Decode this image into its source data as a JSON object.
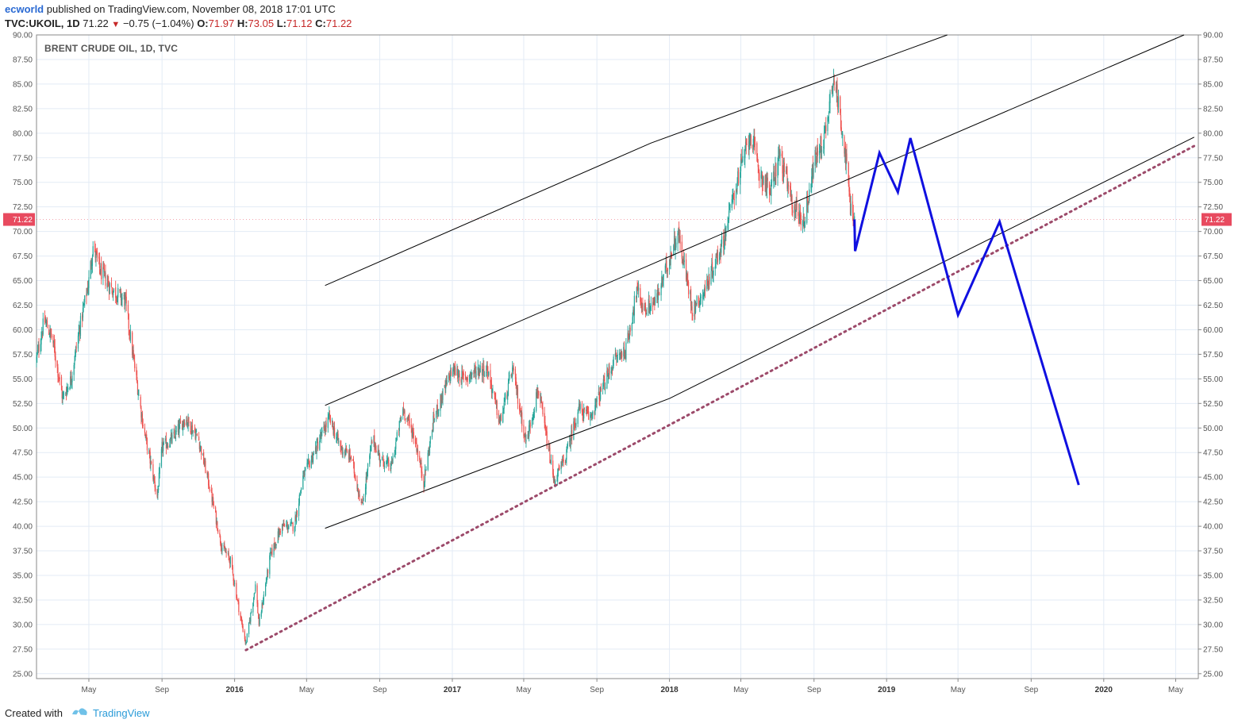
{
  "header": {
    "author": "ecworld",
    "published_text": "published on TradingView.com, November 08, 2018 17:01 UTC",
    "symbol": "TVC:UKOIL, 1D",
    "last_price": "71.22",
    "change": "−0.75 (−1.04%)",
    "open_label": "O:",
    "open": "71.97",
    "high_label": "H:",
    "high": "73.05",
    "low_label": "L:",
    "low": "71.12",
    "close_label": "C:",
    "close": "71.22"
  },
  "chart_title": "BRENT CRUDE OIL, 1D, TVC",
  "footer": {
    "created_with": "Created with",
    "brand": "TradingView"
  },
  "colors": {
    "up": "#26a69a",
    "down": "#ef5350",
    "projection": "#1010e0",
    "trendline": "#9c4a6a",
    "channel": "#000000",
    "price_tag": "#e84a5f",
    "grid": "#e3ebf5"
  },
  "chart_data": {
    "type": "candlestick",
    "y_range": [
      24.5,
      90
    ],
    "x_range": [
      "2015-02-02",
      "2020-06-08"
    ],
    "grid": true,
    "last_price": 71.22,
    "y_ticks": [
      "25.00",
      "27.50",
      "30.00",
      "32.50",
      "35.00",
      "37.50",
      "40.00",
      "42.50",
      "45.00",
      "47.50",
      "50.00",
      "52.50",
      "55.00",
      "57.50",
      "60.00",
      "62.50",
      "65.00",
      "67.50",
      "70.00",
      "72.50",
      "75.00",
      "77.50",
      "80.00",
      "82.50",
      "85.00",
      "87.50",
      "90.00"
    ],
    "x_ticks": [
      {
        "label": "May",
        "date": "2015-05-01",
        "bold": false
      },
      {
        "label": "Sep",
        "date": "2015-09-01",
        "bold": false
      },
      {
        "label": "2016",
        "date": "2016-01-01",
        "bold": true
      },
      {
        "label": "May",
        "date": "2016-05-01",
        "bold": false
      },
      {
        "label": "Sep",
        "date": "2016-09-01",
        "bold": false
      },
      {
        "label": "2017",
        "date": "2017-01-01",
        "bold": true
      },
      {
        "label": "May",
        "date": "2017-05-01",
        "bold": false
      },
      {
        "label": "Sep",
        "date": "2017-09-01",
        "bold": false
      },
      {
        "label": "2018",
        "date": "2018-01-01",
        "bold": true
      },
      {
        "label": "May",
        "date": "2018-05-01",
        "bold": false
      },
      {
        "label": "Sep",
        "date": "2018-09-01",
        "bold": false
      },
      {
        "label": "2019",
        "date": "2019-01-01",
        "bold": true
      },
      {
        "label": "May",
        "date": "2019-05-01",
        "bold": false
      },
      {
        "label": "Sep",
        "date": "2019-09-01",
        "bold": false
      },
      {
        "label": "2020",
        "date": "2020-01-01",
        "bold": true
      },
      {
        "label": "May",
        "date": "2020-05-01",
        "bold": false
      }
    ],
    "price_path": [
      [
        "2015-02-02",
        57
      ],
      [
        "2015-02-15",
        61
      ],
      [
        "2015-03-01",
        59
      ],
      [
        "2015-03-18",
        53
      ],
      [
        "2015-04-01",
        55
      ],
      [
        "2015-04-15",
        60
      ],
      [
        "2015-05-01",
        65
      ],
      [
        "2015-05-08",
        68.5
      ],
      [
        "2015-05-20",
        66
      ],
      [
        "2015-06-10",
        64
      ],
      [
        "2015-07-01",
        63
      ],
      [
        "2015-07-15",
        57
      ],
      [
        "2015-08-01",
        50
      ],
      [
        "2015-08-24",
        43
      ],
      [
        "2015-09-01",
        48
      ],
      [
        "2015-09-20",
        49
      ],
      [
        "2015-10-10",
        51
      ],
      [
        "2015-11-01",
        49
      ],
      [
        "2015-11-20",
        44
      ],
      [
        "2015-12-10",
        38
      ],
      [
        "2015-12-25",
        36.5
      ],
      [
        "2016-01-10",
        31
      ],
      [
        "2016-01-20",
        28
      ],
      [
        "2016-02-05",
        34
      ],
      [
        "2016-02-11",
        30
      ],
      [
        "2016-03-01",
        37
      ],
      [
        "2016-03-20",
        40
      ],
      [
        "2016-04-10",
        40
      ],
      [
        "2016-04-25",
        45
      ],
      [
        "2016-05-10",
        47
      ],
      [
        "2016-06-08",
        51
      ],
      [
        "2016-06-27",
        48
      ],
      [
        "2016-07-15",
        47
      ],
      [
        "2016-08-02",
        42
      ],
      [
        "2016-08-20",
        49
      ],
      [
        "2016-09-01",
        47
      ],
      [
        "2016-09-20",
        46
      ],
      [
        "2016-10-10",
        52
      ],
      [
        "2016-10-30",
        49
      ],
      [
        "2016-11-14",
        44.5
      ],
      [
        "2016-12-01",
        51
      ],
      [
        "2017-01-01",
        56
      ],
      [
        "2017-01-20",
        55
      ],
      [
        "2017-02-15",
        56
      ],
      [
        "2017-03-01",
        56
      ],
      [
        "2017-03-22",
        50.5
      ],
      [
        "2017-04-12",
        56
      ],
      [
        "2017-05-05",
        48.5
      ],
      [
        "2017-05-25",
        54
      ],
      [
        "2017-06-21",
        44.5
      ],
      [
        "2017-07-10",
        47
      ],
      [
        "2017-08-01",
        52
      ],
      [
        "2017-08-20",
        51
      ],
      [
        "2017-09-10",
        54
      ],
      [
        "2017-10-01",
        57
      ],
      [
        "2017-10-20",
        58
      ],
      [
        "2017-11-07",
        64
      ],
      [
        "2017-11-20",
        62
      ],
      [
        "2017-12-10",
        63
      ],
      [
        "2018-01-15",
        70
      ],
      [
        "2018-02-09",
        62
      ],
      [
        "2018-03-01",
        64
      ],
      [
        "2018-04-01",
        69
      ],
      [
        "2018-04-20",
        74
      ],
      [
        "2018-05-17",
        80
      ],
      [
        "2018-06-01",
        76
      ],
      [
        "2018-06-20",
        74
      ],
      [
        "2018-07-05",
        78
      ],
      [
        "2018-07-25",
        73
      ],
      [
        "2018-08-15",
        71
      ],
      [
        "2018-09-01",
        77
      ],
      [
        "2018-09-20",
        80
      ],
      [
        "2018-10-03",
        86
      ],
      [
        "2018-10-20",
        80
      ],
      [
        "2018-11-02",
        72
      ],
      [
        "2018-11-08",
        71.22
      ]
    ],
    "projection": [
      [
        "2018-11-08",
        71.22
      ],
      [
        "2018-11-09",
        68
      ],
      [
        "2018-12-20",
        78
      ],
      [
        "2019-01-20",
        74
      ],
      [
        "2019-02-10",
        79.5
      ],
      [
        "2019-05-01",
        61.5
      ],
      [
        "2019-07-10",
        71
      ],
      [
        "2019-11-20",
        44.2
      ]
    ],
    "channel_upper": [
      [
        "2016-06-01",
        64.5
      ],
      [
        "2017-12-01",
        79.0
      ],
      [
        "2019-04-13",
        90.0
      ]
    ],
    "channel_middle": [
      [
        "2016-06-01",
        52.3
      ],
      [
        "2019-01-01",
        77.0
      ],
      [
        "2020-05-15",
        90.0
      ]
    ],
    "channel_lower": [
      [
        "2016-06-01",
        39.8
      ],
      [
        "2018-01-01",
        53.0
      ],
      [
        "2020-06-01",
        79.6
      ]
    ],
    "support_trendline": [
      [
        "2016-01-20",
        27.4
      ],
      [
        "2020-06-01",
        78.7
      ]
    ]
  }
}
